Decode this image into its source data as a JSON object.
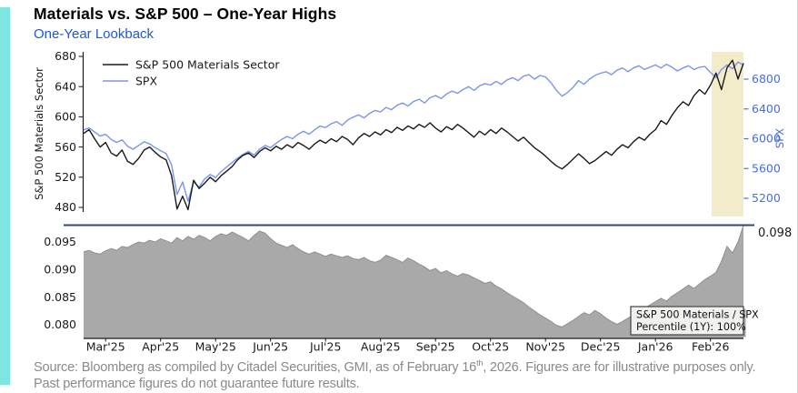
{
  "page": {
    "title": "Materials vs. S&P 500 – One-Year Highs",
    "subtitle": "One-Year Lookback",
    "source_line1_pre": "Source: Bloomberg as compiled by Citadel Securities, GMI, as of February 16",
    "source_sup": "th",
    "source_line1_post": ", 2026. Figures are for illustrative purposes only.",
    "source_line2": "Past performance figures do not guarantee future results."
  },
  "colors": {
    "accent_bar": "#7ee6e1",
    "subtitle_blue": "#1e5ac8",
    "materials_line": "#1a1a1a",
    "spx_line": "#7b96ea",
    "spx_axis_text": "#4a6ed0",
    "highlight_band": "#f2ecca",
    "ratio_area": "#a9a9a9",
    "high_line_navy": "#35466b",
    "source_text": "#8a8a8a",
    "axis_text": "#1a1a1a",
    "annotation_bg": "#f1f1ef",
    "annotation_border": "#4d4d4d"
  },
  "chart_data": [
    {
      "type": "line",
      "title": "",
      "x_categories": [
        "Mar'25",
        "Apr'25",
        "May'25",
        "Jun'25",
        "Jul'25",
        "Aug'25",
        "Sep'25",
        "Oct'25",
        "Nov'25",
        "Dec'25",
        "Jan'26",
        "Feb'26"
      ],
      "left_axis": {
        "label": "S&P 500 Materials Sector",
        "ticks": [
          "480",
          "520",
          "560",
          "600",
          "640",
          "680"
        ],
        "range": [
          480,
          680
        ]
      },
      "right_axis": {
        "label": "SPX",
        "ticks": [
          "5200",
          "5600",
          "6000",
          "6400",
          "6800"
        ],
        "range": [
          5200,
          6800
        ]
      },
      "legend": {
        "position": "upper-left",
        "entries": [
          "S&P 500 Materials Sector",
          "SPX"
        ]
      },
      "highlight_band": {
        "note": "final-two-weeks highlight",
        "color": "#f2ecca"
      },
      "series": [
        {
          "name": "S&P 500 Materials Sector",
          "axis": "left",
          "color": "#1a1a1a",
          "values": [
            578,
            583,
            571,
            560,
            566,
            552,
            548,
            556,
            541,
            537,
            545,
            556,
            560,
            553,
            547,
            543,
            522,
            478,
            495,
            477,
            516,
            505,
            512,
            520,
            514,
            522,
            528,
            534,
            543,
            549,
            552,
            546,
            554,
            559,
            555,
            561,
            557,
            563,
            559,
            566,
            562,
            557,
            564,
            569,
            565,
            571,
            567,
            574,
            570,
            563,
            572,
            578,
            574,
            580,
            576,
            583,
            579,
            586,
            582,
            588,
            584,
            590,
            586,
            592,
            585,
            580,
            587,
            583,
            590,
            585,
            579,
            573,
            581,
            576,
            583,
            578,
            585,
            580,
            574,
            568,
            573,
            566,
            559,
            554,
            548,
            541,
            535,
            531,
            537,
            544,
            551,
            545,
            538,
            542,
            548,
            554,
            549,
            557,
            563,
            559,
            567,
            573,
            569,
            577,
            583,
            595,
            590,
            602,
            612,
            620,
            615,
            628,
            636,
            630,
            642,
            658,
            636,
            665,
            675,
            650,
            671
          ]
        },
        {
          "name": "SPX",
          "axis": "right",
          "color": "#7b96ea",
          "values": [
            6120,
            6145,
            6090,
            6035,
            6060,
            5990,
            5950,
            5985,
            5900,
            5860,
            5910,
            5960,
            5930,
            5880,
            5840,
            5800,
            5650,
            5250,
            5420,
            5160,
            5420,
            5350,
            5460,
            5520,
            5480,
            5560,
            5620,
            5680,
            5740,
            5790,
            5830,
            5780,
            5860,
            5910,
            5880,
            5940,
            5990,
            6030,
            6000,
            6060,
            6100,
            6060,
            6120,
            6170,
            6150,
            6200,
            6230,
            6180,
            6250,
            6290,
            6320,
            6280,
            6340,
            6380,
            6360,
            6420,
            6390,
            6450,
            6480,
            6440,
            6500,
            6530,
            6480,
            6550,
            6580,
            6540,
            6600,
            6640,
            6610,
            6660,
            6700,
            6650,
            6710,
            6740,
            6720,
            6770,
            6730,
            6790,
            6820,
            6780,
            6840,
            6860,
            6800,
            6850,
            6830,
            6750,
            6650,
            6570,
            6620,
            6690,
            6780,
            6730,
            6800,
            6850,
            6880,
            6900,
            6860,
            6920,
            6950,
            6900,
            6950,
            6980,
            6930,
            6960,
            6990,
            6950,
            7000,
            6960,
            6910,
            6950,
            6980,
            6930,
            6960,
            6970,
            6890,
            6820,
            6930,
            6990,
            6940,
            7030,
            6990
          ]
        }
      ]
    },
    {
      "type": "area",
      "name": "S&P 500 Materials / SPX",
      "y_ticks": [
        "0.080",
        "0.085",
        "0.090",
        "0.095"
      ],
      "high_line": {
        "value": 0.098,
        "label": "0.098"
      },
      "annotation": {
        "line1": "S&P 500 Materials / SPX",
        "line2": "Percentile (1Y): 100%"
      },
      "values": [
        0.0932,
        0.0935,
        0.093,
        0.0928,
        0.0934,
        0.0938,
        0.0935,
        0.0942,
        0.094,
        0.0945,
        0.095,
        0.0948,
        0.0953,
        0.095,
        0.0956,
        0.0952,
        0.0948,
        0.0958,
        0.0952,
        0.096,
        0.0955,
        0.0962,
        0.0958,
        0.0952,
        0.096,
        0.0965,
        0.0962,
        0.0968,
        0.0963,
        0.0958,
        0.0952,
        0.0962,
        0.097,
        0.0966,
        0.0956,
        0.0948,
        0.0944,
        0.094,
        0.0945,
        0.0938,
        0.0932,
        0.0928,
        0.0932,
        0.0928,
        0.0924,
        0.0928,
        0.0925,
        0.0922,
        0.0925,
        0.092,
        0.0918,
        0.0922,
        0.0916,
        0.0913,
        0.0917,
        0.0926,
        0.0922,
        0.0918,
        0.0913,
        0.0921,
        0.0916,
        0.091,
        0.0905,
        0.0898,
        0.0902,
        0.0894,
        0.0898,
        0.0892,
        0.0888,
        0.0893,
        0.089,
        0.0885,
        0.088,
        0.0875,
        0.0878,
        0.087,
        0.0865,
        0.0858,
        0.0852,
        0.0846,
        0.084,
        0.0832,
        0.0825,
        0.0818,
        0.0812,
        0.0806,
        0.0799,
        0.0796,
        0.0802,
        0.0808,
        0.0815,
        0.0822,
        0.0818,
        0.0826,
        0.082,
        0.0812,
        0.0806,
        0.0801,
        0.0806,
        0.0812,
        0.0818,
        0.0824,
        0.083,
        0.0836,
        0.0842,
        0.0848,
        0.0843,
        0.0852,
        0.0858,
        0.0865,
        0.0872,
        0.0866,
        0.0874,
        0.0882,
        0.0888,
        0.0895,
        0.0915,
        0.0942,
        0.093,
        0.095,
        0.098
      ]
    }
  ]
}
